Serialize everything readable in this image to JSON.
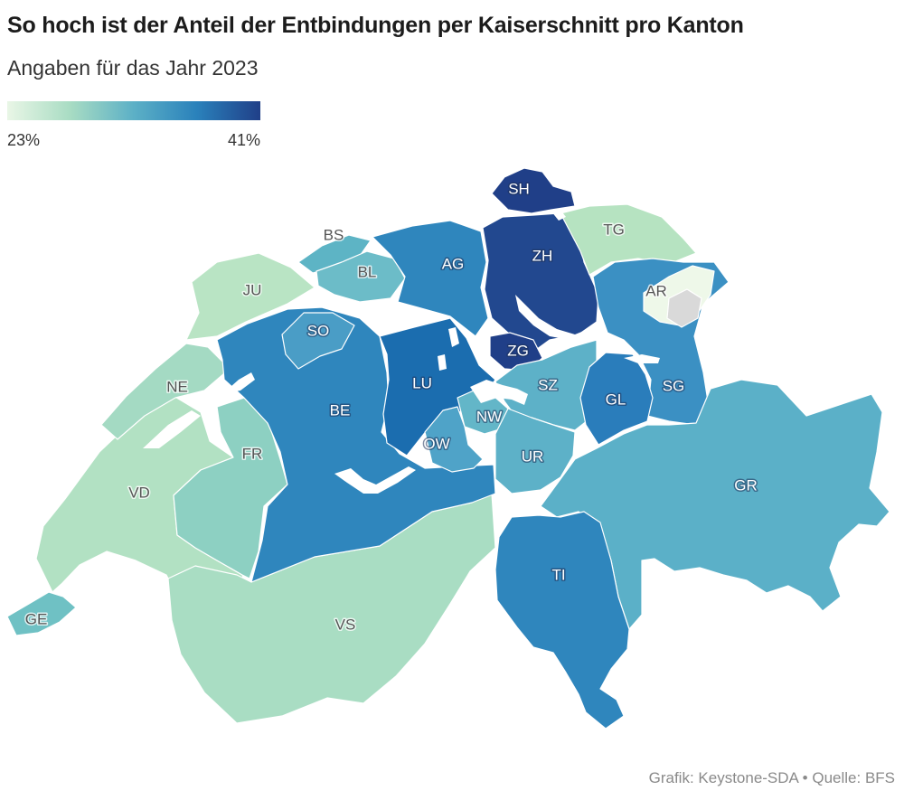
{
  "title": "So hoch ist der Anteil der Entbindungen per Kaiserschnitt pro Kanton",
  "subtitle": "Angaben für das Jahr 2023",
  "legend": {
    "min_label": "23%",
    "max_label": "41%",
    "colors": [
      "#e9f6e6",
      "#a8dcc3",
      "#5cb0c6",
      "#2a81bb",
      "#203f88"
    ]
  },
  "colors": {
    "no_data": "#d9d9d9",
    "label_light": "#ffffff",
    "label_dark": "#555555"
  },
  "cantons": {
    "SH": {
      "label": "SH",
      "fill": "#203f88"
    },
    "TG": {
      "label": "TG",
      "fill": "#b6e3c1"
    },
    "ZH": {
      "label": "ZH",
      "fill": "#22488f"
    },
    "BS": {
      "label": "BS",
      "fill": "#5db4c5"
    },
    "BL": {
      "label": "BL",
      "fill": "#6cbcc8"
    },
    "AG": {
      "label": "AG",
      "fill": "#2f86bd"
    },
    "JU": {
      "label": "JU",
      "fill": "#b9e4c4"
    },
    "AR": {
      "label": "AR",
      "fill": "#eef8e9"
    },
    "AI": {
      "label": "",
      "fill": "#d9d9d9"
    },
    "SO": {
      "label": "SO",
      "fill": "#4a9dc6"
    },
    "ZG": {
      "label": "ZG",
      "fill": "#203f88"
    },
    "SZ": {
      "label": "SZ",
      "fill": "#5db1c8"
    },
    "SG": {
      "label": "SG",
      "fill": "#3b90c3"
    },
    "LU": {
      "label": "LU",
      "fill": "#1b6daf"
    },
    "GL": {
      "label": "GL",
      "fill": "#2a7dbb"
    },
    "NE": {
      "label": "NE",
      "fill": "#a4dac3"
    },
    "BE": {
      "label": "BE",
      "fill": "#2f86bd"
    },
    "NW": {
      "label": "NW",
      "fill": "#63b6c8"
    },
    "OW": {
      "label": "OW",
      "fill": "#4fa3c8"
    },
    "FR": {
      "label": "FR",
      "fill": "#8dd0c2"
    },
    "UR": {
      "label": "UR",
      "fill": "#5db1c8"
    },
    "GR": {
      "label": "GR",
      "fill": "#5bb0c8"
    },
    "VD": {
      "label": "VD",
      "fill": "#b2e1c3"
    },
    "TI": {
      "label": "TI",
      "fill": "#2f86bd"
    },
    "VS": {
      "label": "VS",
      "fill": "#a9ddc3"
    },
    "GE": {
      "label": "GE",
      "fill": "#6fc1c4"
    }
  },
  "source": "Grafik: Keystone-SDA • Quelle: BFS"
}
